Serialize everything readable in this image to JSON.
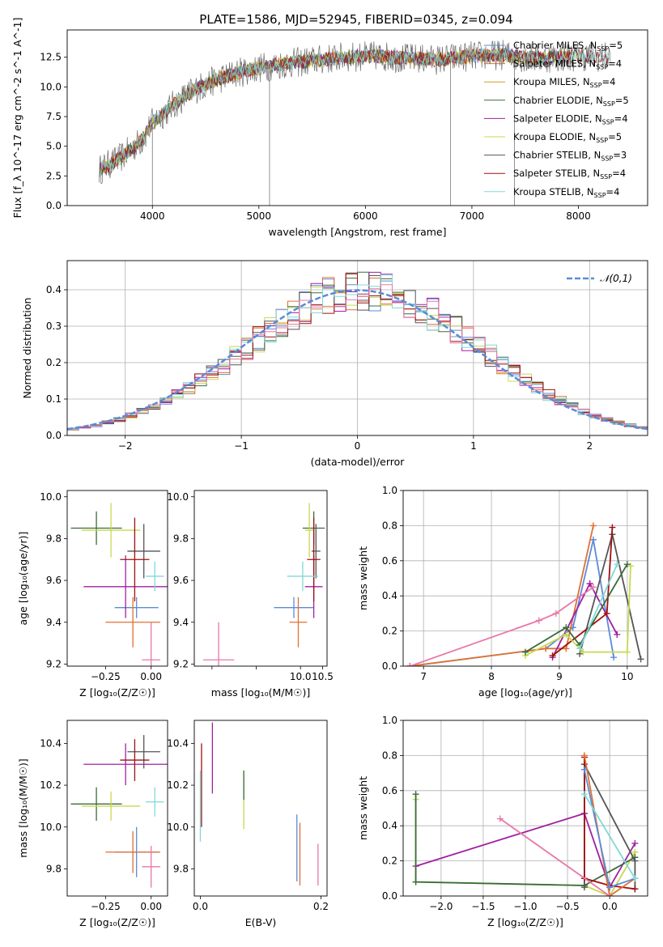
{
  "figure": {
    "title": "PLATE=1586, MJD=52945, FIBERID=0345, z=0.094"
  },
  "palette": [
    "#1f3a5f",
    "#7a3b8f",
    "#d4a020",
    "#3a6b3a",
    "#a020a0",
    "#c8d850",
    "#555555",
    "#a01010",
    "#80d8d8",
    "#e07030",
    "#5b8bd8",
    "#e878a8",
    "#90d0a0"
  ],
  "chart_data": [
    {
      "id": "spectrum",
      "type": "line",
      "title": "PLATE=1586, MJD=52945, FIBERID=0345, z=0.094",
      "xlabel": "wavelength [Angstrom, rest frame]",
      "ylabel": "Flux [f_λ 10^-17 erg cm^-2 s^-1 A^-1]",
      "xlim": [
        3200,
        8650
      ],
      "ylim": [
        0,
        14.8
      ],
      "xticks": [
        4000,
        5000,
        6000,
        7000,
        8000
      ],
      "yticks": [
        0.0,
        2.5,
        5.0,
        7.5,
        10.0,
        12.5
      ],
      "legend_position": "right",
      "legend": [
        {
          "label": "Chabrier MILES, N",
          "sub": "SSP",
          "tail": "=5",
          "color": "#5b8bd8"
        },
        {
          "label": "Salpeter MILES, N",
          "sub": "SSP",
          "tail": "=4",
          "color": "#e07030"
        },
        {
          "label": "Kroupa MILES, N",
          "sub": "SSP",
          "tail": "=4",
          "color": "#d4a020"
        },
        {
          "label": "Chabrier ELODIE, N",
          "sub": "SSP",
          "tail": "=5",
          "color": "#3a6b3a"
        },
        {
          "label": "Salpeter ELODIE, N",
          "sub": "SSP",
          "tail": "=4",
          "color": "#a020a0"
        },
        {
          "label": "Kroupa ELODIE, N",
          "sub": "SSP",
          "tail": "=5",
          "color": "#c8d850"
        },
        {
          "label": "Chabrier STELIB, N",
          "sub": "SSP",
          "tail": "=3",
          "color": "#555555"
        },
        {
          "label": "Salpeter STELIB, N",
          "sub": "SSP",
          "tail": "=4",
          "color": "#a01010"
        },
        {
          "label": "Kroupa STELIB, N",
          "sub": "SSP",
          "tail": "=4",
          "color": "#80d8d8"
        }
      ],
      "continuum": [
        [
          3500,
          3.0
        ],
        [
          3700,
          4.0
        ],
        [
          3900,
          5.5
        ],
        [
          4000,
          7.0
        ],
        [
          4200,
          8.5
        ],
        [
          4400,
          9.8
        ],
        [
          4600,
          10.6
        ],
        [
          4800,
          11.2
        ],
        [
          5000,
          11.6
        ],
        [
          5200,
          11.9
        ],
        [
          5500,
          12.2
        ],
        [
          5800,
          12.5
        ],
        [
          6100,
          12.6
        ],
        [
          6400,
          12.4
        ],
        [
          6700,
          12.3
        ],
        [
          7000,
          12.6
        ],
        [
          7300,
          12.7
        ],
        [
          7600,
          12.4
        ],
        [
          8000,
          12.6
        ],
        [
          8300,
          12.5
        ]
      ],
      "dropouts": [
        [
          4000,
          0
        ],
        [
          5100,
          0
        ],
        [
          6800,
          0
        ],
        [
          7400,
          0
        ]
      ]
    },
    {
      "id": "residuals",
      "type": "bar",
      "xlabel": "(data-model)/error",
      "ylabel": "Normed distribution",
      "xlim": [
        -2.5,
        2.5
      ],
      "ylim": [
        0,
        0.48
      ],
      "xticks": [
        -2,
        -1,
        0,
        1,
        2
      ],
      "yticks": [
        0.0,
        0.1,
        0.2,
        0.3,
        0.4
      ],
      "grid": true,
      "legend": [
        {
          "label": "𝒩(0,1)",
          "color": "#5b8bd8"
        }
      ],
      "bin_width": 0.1,
      "series_count": 9
    },
    {
      "id": "age_vs_Z",
      "type": "scatter",
      "xlabel": "Z [log₁₀(Z/Z☉)]",
      "ylabel": "age  [log₁₀(age/yr)]",
      "xlim": [
        -0.46,
        0.09
      ],
      "ylim": [
        9.19,
        10.03
      ],
      "xticks": [
        -0.25,
        0.0
      ],
      "xtick_labels": [
        "−0.25",
        "0.00"
      ],
      "yticks": [
        9.2,
        9.4,
        9.6,
        9.8,
        10.0
      ],
      "points": [
        {
          "x": -0.08,
          "xerr": 0.12,
          "y": 9.47,
          "yerr": 0.05,
          "color": "#5b8bd8"
        },
        {
          "x": -0.1,
          "xerr": 0.15,
          "y": 9.4,
          "yerr": 0.12,
          "color": "#e07030"
        },
        {
          "x": -0.3,
          "xerr": 0.14,
          "y": 9.85,
          "yerr": 0.08,
          "color": "#3a6b3a"
        },
        {
          "x": -0.14,
          "xerr": 0.23,
          "y": 9.57,
          "yerr": 0.15,
          "color": "#a020a0"
        },
        {
          "x": -0.22,
          "xerr": 0.16,
          "y": 9.84,
          "yerr": 0.13,
          "color": "#c8d850"
        },
        {
          "x": -0.04,
          "xerr": 0.09,
          "y": 9.74,
          "yerr": 0.13,
          "color": "#555555"
        },
        {
          "x": -0.09,
          "xerr": 0.08,
          "y": 9.7,
          "yerr": 0.2,
          "color": "#a01010"
        },
        {
          "x": 0.02,
          "xerr": 0.05,
          "y": 9.62,
          "yerr": 0.07,
          "color": "#80d8d8"
        },
        {
          "x": 0.0,
          "xerr": 0.05,
          "y": 9.22,
          "yerr": 0.18,
          "color": "#e878a8"
        }
      ]
    },
    {
      "id": "age_vs_mass",
      "type": "scatter",
      "xlabel": "mass [log₁₀(M/M☉)]",
      "ylabel": "",
      "xlim": [
        7.6,
        10.6
      ],
      "ylim": [
        9.19,
        10.03
      ],
      "xticks": [
        8,
        9,
        10,
        10.5
      ],
      "xtick_labels": [
        "",
        "",
        "10.0",
        "10.5"
      ],
      "yticks": [
        9.2,
        9.4,
        9.6,
        9.8,
        10.0
      ],
      "points": [
        {
          "x": 9.85,
          "xerr": 0.45,
          "y": 9.47,
          "yerr": 0.05,
          "color": "#5b8bd8"
        },
        {
          "x": 9.95,
          "xerr": 0.2,
          "y": 9.4,
          "yerr": 0.12,
          "color": "#e07030"
        },
        {
          "x": 10.3,
          "xerr": 0.25,
          "y": 9.85,
          "yerr": 0.08,
          "color": "#3a6b3a"
        },
        {
          "x": 10.3,
          "xerr": 0.2,
          "y": 9.57,
          "yerr": 0.15,
          "color": "#a020a0"
        },
        {
          "x": 10.2,
          "xerr": 0.1,
          "y": 9.84,
          "yerr": 0.13,
          "color": "#c8d850"
        },
        {
          "x": 10.35,
          "xerr": 0.1,
          "y": 9.74,
          "yerr": 0.13,
          "color": "#555555"
        },
        {
          "x": 10.3,
          "xerr": 0.15,
          "y": 9.7,
          "yerr": 0.2,
          "color": "#a01010"
        },
        {
          "x": 10.05,
          "xerr": 0.35,
          "y": 9.62,
          "yerr": 0.07,
          "color": "#80d8d8"
        },
        {
          "x": 8.15,
          "xerr": 0.35,
          "y": 9.22,
          "yerr": 0.18,
          "color": "#e878a8"
        }
      ]
    },
    {
      "id": "massweight_vs_age",
      "type": "line",
      "xlabel": "age  [log₁₀(age/yr)]",
      "ylabel": "mass weight",
      "xlim": [
        6.7,
        10.3
      ],
      "ylim": [
        0.0,
        1.0
      ],
      "xticks": [
        7,
        8,
        9,
        10
      ],
      "yticks": [
        0.0,
        0.2,
        0.4,
        0.6,
        0.8,
        1.0
      ],
      "grid": true,
      "series": [
        {
          "color": "#5b8bd8",
          "x": [
            6.8,
            8.8,
            9.2,
            9.5,
            9.8
          ],
          "y": [
            0.0,
            0.1,
            0.22,
            0.72,
            0.05
          ]
        },
        {
          "color": "#e07030",
          "x": [
            6.8,
            8.8,
            9.1,
            9.5
          ],
          "y": [
            0.0,
            0.1,
            0.1,
            0.8
          ]
        },
        {
          "color": "#555555",
          "x": [
            9.3,
            9.78,
            10.2
          ],
          "y": [
            0.07,
            0.75,
            0.04
          ]
        },
        {
          "color": "#a020a0",
          "x": [
            8.9,
            9.45,
            9.85
          ],
          "y": [
            0.05,
            0.47,
            0.18
          ]
        },
        {
          "color": "#a01010",
          "x": [
            8.9,
            9.7,
            9.78
          ],
          "y": [
            0.06,
            0.3,
            0.79
          ]
        },
        {
          "color": "#c8d850",
          "x": [
            8.5,
            9.1,
            9.35,
            10.0,
            10.05
          ],
          "y": [
            0.06,
            0.18,
            0.08,
            0.08,
            0.57
          ]
        },
        {
          "color": "#3a6b3a",
          "x": [
            8.5,
            9.1,
            9.3,
            10.0
          ],
          "y": [
            0.08,
            0.22,
            0.12,
            0.58
          ]
        },
        {
          "color": "#e878a8",
          "x": [
            6.8,
            8.7,
            8.95,
            9.5
          ],
          "y": [
            0.0,
            0.26,
            0.3,
            0.45
          ]
        },
        {
          "color": "#80d8d8",
          "x": [
            9.3,
            9.85
          ],
          "y": [
            0.1,
            0.58
          ]
        }
      ]
    },
    {
      "id": "mass_vs_Z",
      "type": "scatter",
      "xlabel": "Z [log₁₀(Z/Z☉)]",
      "ylabel": "mass [log₁₀(M/M☉)]",
      "xlim": [
        -0.46,
        0.09
      ],
      "ylim": [
        9.67,
        10.51
      ],
      "xticks": [
        -0.25,
        0.0
      ],
      "xtick_labels": [
        "−0.25",
        "0.00"
      ],
      "yticks": [
        9.8,
        10.0,
        10.2,
        10.4
      ],
      "points": [
        {
          "x": -0.08,
          "xerr": 0.12,
          "y": 9.88,
          "yerr": 0.12,
          "color": "#5b8bd8"
        },
        {
          "x": -0.1,
          "xerr": 0.15,
          "y": 9.88,
          "yerr": 0.1,
          "color": "#e07030"
        },
        {
          "x": -0.3,
          "xerr": 0.14,
          "y": 10.11,
          "yerr": 0.08,
          "color": "#3a6b3a"
        },
        {
          "x": -0.14,
          "xerr": 0.23,
          "y": 10.3,
          "yerr": 0.1,
          "color": "#a020a0"
        },
        {
          "x": -0.22,
          "xerr": 0.16,
          "y": 10.1,
          "yerr": 0.07,
          "color": "#c8d850"
        },
        {
          "x": -0.04,
          "xerr": 0.09,
          "y": 10.36,
          "yerr": 0.08,
          "color": "#555555"
        },
        {
          "x": -0.09,
          "xerr": 0.08,
          "y": 10.32,
          "yerr": 0.1,
          "color": "#a01010"
        },
        {
          "x": 0.02,
          "xerr": 0.05,
          "y": 10.12,
          "yerr": 0.07,
          "color": "#80d8d8"
        },
        {
          "x": 0.0,
          "xerr": 0.05,
          "y": 9.81,
          "yerr": 0.1,
          "color": "#e878a8"
        }
      ]
    },
    {
      "id": "mass_vs_ebv",
      "type": "scatter",
      "xlabel": "E(B-V)",
      "ylabel": "",
      "xlim": [
        -0.01,
        0.21
      ],
      "ylim": [
        9.67,
        10.51
      ],
      "xticks": [
        0.0,
        0.2
      ],
      "yticks": [
        9.8,
        10.0,
        10.2,
        10.4
      ],
      "points": [
        {
          "x": 0.16,
          "y": 9.9,
          "yerr": 0.16,
          "color": "#5b8bd8"
        },
        {
          "x": 0.165,
          "y": 9.87,
          "yerr": 0.15,
          "color": "#e07030"
        },
        {
          "x": 0.002,
          "y": 10.2,
          "yerr": 0.2,
          "color": "#a01010"
        },
        {
          "x": 0.02,
          "y": 10.33,
          "yerr": 0.17,
          "color": "#a020a0"
        },
        {
          "x": 0.072,
          "y": 10.13,
          "yerr": 0.14,
          "color": "#c8d850"
        },
        {
          "x": 0.0,
          "y": 10.1,
          "yerr": 0.17,
          "color": "#80d8d8"
        },
        {
          "x": 0.195,
          "y": 9.82,
          "yerr": 0.1,
          "color": "#e878a8"
        },
        {
          "x": 0.072,
          "y": 10.2,
          "yerr": 0.07,
          "color": "#3a6b3a"
        }
      ]
    },
    {
      "id": "massweight_vs_Z",
      "type": "line",
      "xlabel": "Z [log₁₀(Z/Z☉)]",
      "ylabel": "mass weight",
      "xlim": [
        -2.45,
        0.45
      ],
      "ylim": [
        0.0,
        1.0
      ],
      "xticks": [
        -2.0,
        -1.5,
        -1.0,
        -0.5,
        0.0
      ],
      "xtick_labels": [
        "−2.0",
        "−1.5",
        "−1.0",
        "−0.5",
        "0.0"
      ],
      "yticks": [
        0.0,
        0.2,
        0.4,
        0.6,
        0.8,
        1.0
      ],
      "grid": true,
      "series": [
        {
          "color": "#a020a0",
          "x": [
            -2.3,
            -0.3,
            0.0,
            0.3
          ],
          "y": [
            0.17,
            0.47,
            0.05,
            0.3
          ]
        },
        {
          "color": "#c8d850",
          "x": [
            -2.3,
            -2.3,
            -0.3,
            0.0,
            0.3
          ],
          "y": [
            0.55,
            0.08,
            0.06,
            0.0,
            0.25
          ]
        },
        {
          "color": "#3a6b3a",
          "x": [
            -2.3,
            -2.3,
            -0.3,
            0.3
          ],
          "y": [
            0.58,
            0.08,
            0.06,
            0.22
          ]
        },
        {
          "color": "#555555",
          "x": [
            -0.3,
            -0.3,
            0.3,
            0.3
          ],
          "y": [
            0.05,
            0.75,
            0.2,
            0.04
          ]
        },
        {
          "color": "#a01010",
          "x": [
            -0.3,
            -0.3,
            0.0,
            0.3
          ],
          "y": [
            0.79,
            0.1,
            0.06,
            0.04
          ]
        },
        {
          "color": "#e07030",
          "x": [
            -0.3,
            0.0,
            0.3
          ],
          "y": [
            0.8,
            0.0,
            0.1
          ]
        },
        {
          "color": "#5b8bd8",
          "x": [
            -0.3,
            0.0,
            0.3
          ],
          "y": [
            0.72,
            0.05,
            0.1
          ]
        },
        {
          "color": "#80d8d8",
          "x": [
            -0.3,
            0.3
          ],
          "y": [
            0.58,
            0.1
          ]
        },
        {
          "color": "#e878a8",
          "x": [
            -1.3,
            0.0
          ],
          "y": [
            0.44,
            0.0
          ]
        }
      ]
    }
  ]
}
